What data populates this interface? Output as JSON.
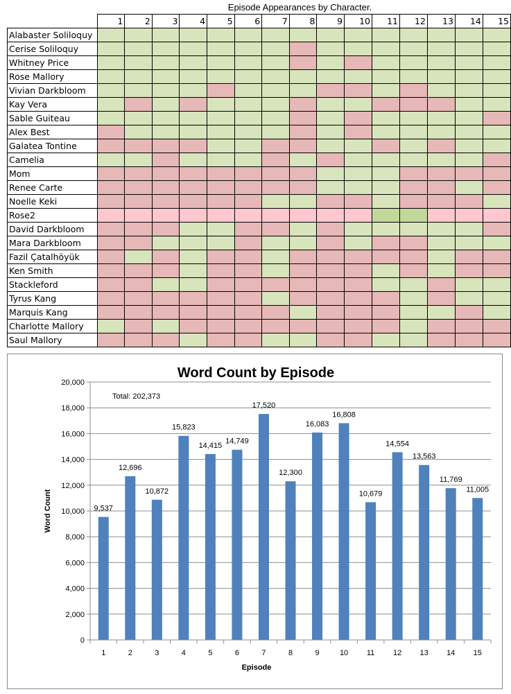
{
  "sheet": {
    "title": "Episode Appearances by Character.",
    "episodes": [
      "1",
      "2",
      "3",
      "4",
      "5",
      "6",
      "7",
      "8",
      "9",
      "10",
      "11",
      "12",
      "13",
      "14",
      "15"
    ],
    "colors": {
      "G": "#d8e4bc",
      "R": "#e6b8b7",
      "P": "#ffc7ce",
      "D": "#c4d79b"
    },
    "rows": [
      {
        "name": "Alabaster Soliloquy",
        "cells": "GGGGGGGGGGGGGGG"
      },
      {
        "name": "Cerise Soliloquy",
        "cells": "GGGGGGGRGGGGGGG"
      },
      {
        "name": "Whitney Price",
        "cells": "GGGGGGGRGRGGGGG"
      },
      {
        "name": "Rose Mallory",
        "cells": "GGGGGGGGGGGGGGG"
      },
      {
        "name": "Vivian Darkbloom",
        "cells": "GGGGRGGGRRGRGGG"
      },
      {
        "name": "Kay Vera",
        "cells": "GRGRGGGRGGRRRGG"
      },
      {
        "name": "Sable Guiteau",
        "cells": "GGGGGGGRGRGGGGR"
      },
      {
        "name": "Alex Best",
        "cells": "RGGGGGGRGRGGGGG"
      },
      {
        "name": "Galatea Tontine",
        "cells": "RRRRGGRRGGRGRGG"
      },
      {
        "name": "Camelia",
        "cells": "GGRGGGRGRGGGGGR"
      },
      {
        "name": "Mom",
        "cells": "RRRRRRRRGGGRRRR"
      },
      {
        "name": "Renee Carte",
        "cells": "RRRRRRRRGGGRRGR"
      },
      {
        "name": "Noelle Keki",
        "cells": "RRRRRRGGRRGRRRG"
      },
      {
        "name": "Rose2",
        "cells": "PPPPPPPPPPDDPPP"
      },
      {
        "name": "David Darkbloom",
        "cells": "RRRGGRRGRGGGGGR"
      },
      {
        "name": "Mara Darkbloom",
        "cells": "RRGGGRGGRGRRGGG"
      },
      {
        "name": "Fazil Çatalhöyük",
        "cells": "RGRGRRGRRRRRGRR"
      },
      {
        "name": "Ken Smith",
        "cells": "RRRGRRGRRRGRGRR"
      },
      {
        "name": "Stackleford",
        "cells": "RRGGRRRRRRGGRGG"
      },
      {
        "name": "Tyrus Kang",
        "cells": "RRRRRRGRRRRGRGG"
      },
      {
        "name": "Marquis Kang",
        "cells": "RRRRRRRGRRRGGRG"
      },
      {
        "name": "Charlotte Mallory",
        "cells": "GRGRRRRRRRRGRRR"
      },
      {
        "name": "Saul Mallory",
        "cells": "RRRGRRGGRRGGRRR"
      }
    ]
  },
  "chart_data": {
    "type": "bar",
    "title": "Word Count by Episode",
    "xlabel": "Episode",
    "ylabel": "Word Count",
    "categories": [
      "1",
      "2",
      "3",
      "4",
      "5",
      "6",
      "7",
      "8",
      "9",
      "10",
      "11",
      "12",
      "13",
      "14",
      "15"
    ],
    "values": [
      9537,
      12696,
      10872,
      15823,
      14415,
      14749,
      17520,
      12300,
      16083,
      16808,
      10679,
      14554,
      13563,
      11769,
      11005
    ],
    "data_labels": [
      "9,537",
      "12,696",
      "10,872",
      "15,823",
      "14,415",
      "14,749",
      "17,520",
      "12,300",
      "16,083",
      "16,808",
      "10,679",
      "14,554",
      "13,563",
      "11,769",
      "11,005"
    ],
    "y_ticks": [
      "0",
      "2,000",
      "4,000",
      "6,000",
      "8,000",
      "10,000",
      "12,000",
      "14,000",
      "16,000",
      "18,000",
      "20,000"
    ],
    "ylim": [
      0,
      20000
    ],
    "y_step": 2000,
    "grid": true,
    "annotation": "Total: 202,373",
    "bar_color": "#4f81bd"
  }
}
